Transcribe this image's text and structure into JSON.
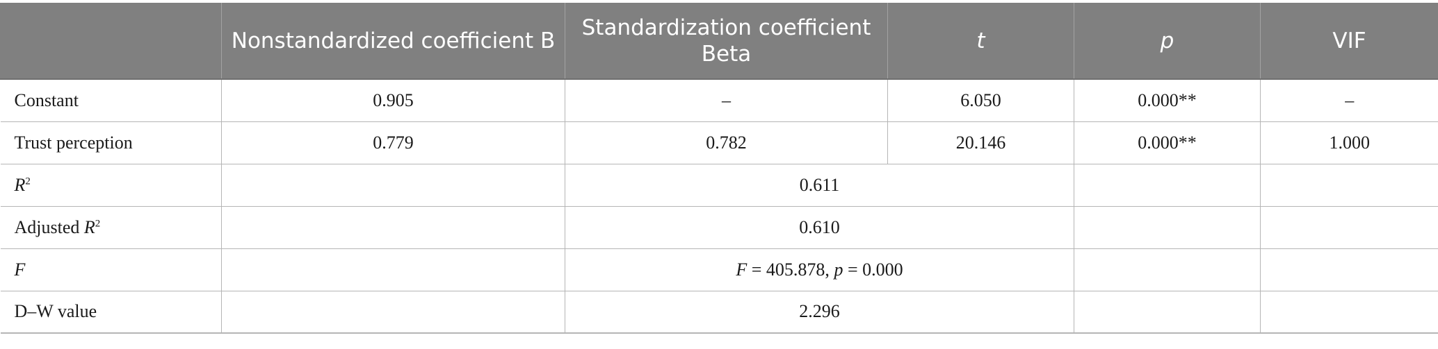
{
  "table": {
    "headers": {
      "row_label": "",
      "b": "Nonstandardized coefficient B",
      "beta": "Standardization coefficient Beta",
      "t": "t",
      "p": "p",
      "vif": "VIF"
    },
    "rows": [
      {
        "label": "Constant",
        "b": "0.905",
        "beta": "–",
        "t": "6.050",
        "p": "0.000**",
        "vif": "–"
      },
      {
        "label": "Trust perception",
        "b": "0.779",
        "beta": "0.782",
        "t": "20.146",
        "p": "0.000**",
        "vif": "1.000"
      }
    ],
    "stats": {
      "r2": {
        "label": "R",
        "sup": "2",
        "value": "0.611"
      },
      "adj_r2": {
        "label_prefix": "Adjusted ",
        "label_var": "R",
        "sup": "2",
        "value": "0.610"
      },
      "f": {
        "label": "F",
        "f_var": "F",
        "f_val": " = 405.878, ",
        "p_var": "p",
        "p_val": " = 0.000"
      },
      "dw": {
        "label": "D–W value",
        "value": "2.296"
      }
    }
  }
}
